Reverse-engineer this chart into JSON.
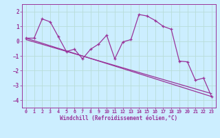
{
  "title": "",
  "xlabel": "Windchill (Refroidissement éolien,°C)",
  "ylabel": "",
  "bg_color": "#cceeff",
  "grid_color": "#aaddcc",
  "line_color": "#993399",
  "xlim": [
    -0.5,
    23.5
  ],
  "ylim": [
    -4.5,
    2.5
  ],
  "yticks": [
    2,
    1,
    0,
    -1,
    -2,
    -3,
    -4
  ],
  "xticks": [
    0,
    1,
    2,
    3,
    4,
    5,
    6,
    7,
    8,
    9,
    10,
    11,
    12,
    13,
    14,
    15,
    16,
    17,
    18,
    19,
    20,
    21,
    22,
    23
  ],
  "series1_x": [
    0,
    1,
    2,
    3,
    4,
    5,
    6,
    7,
    8,
    9,
    10,
    11,
    12,
    13,
    14,
    15,
    16,
    17,
    18,
    19,
    20,
    21,
    22,
    23
  ],
  "series1_y": [
    0.2,
    0.2,
    1.5,
    1.3,
    0.3,
    -0.7,
    -0.55,
    -1.2,
    -0.55,
    -0.2,
    0.4,
    -1.2,
    -0.05,
    0.1,
    1.8,
    1.7,
    1.4,
    1.0,
    0.8,
    -1.35,
    -1.4,
    -2.65,
    -2.5,
    -3.75
  ],
  "series2_x": [
    0,
    23
  ],
  "series2_y": [
    0.2,
    -3.75
  ],
  "series3_x": [
    0,
    23
  ],
  "series3_y": [
    0.1,
    -3.55
  ]
}
